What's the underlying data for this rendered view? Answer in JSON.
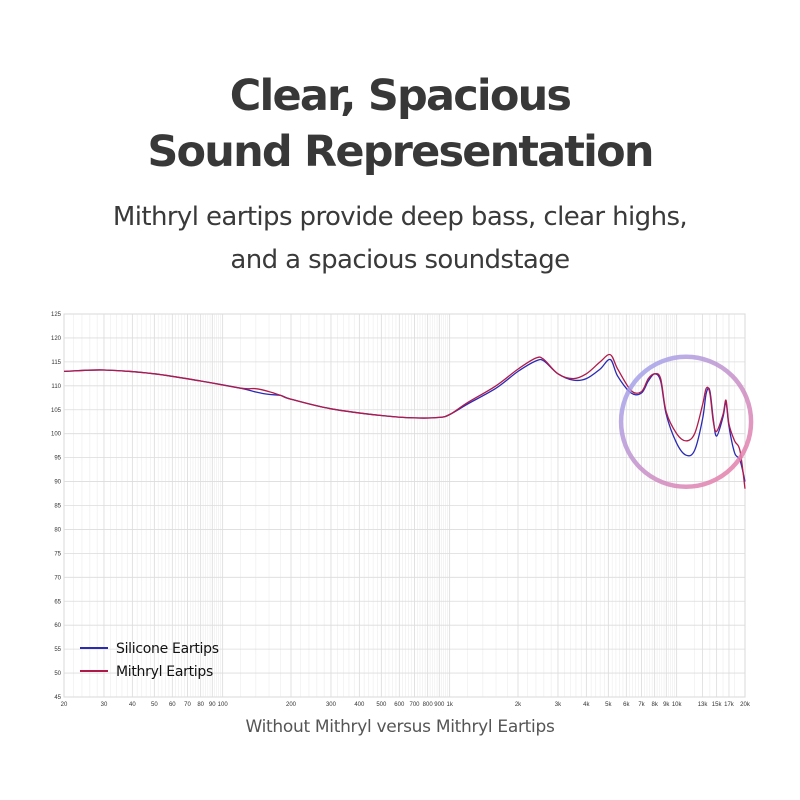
{
  "header": {
    "title_line1": "Clear, Spacious",
    "title_line2": "Sound Representation",
    "subtitle_line1": "Mithryl eartips provide deep bass, clear highs,",
    "subtitle_line2": "and a spacious soundstage"
  },
  "caption": "Without Mithryl versus Mithryl Eartips",
  "colors": {
    "silicone": "#2a2ab5",
    "mithryl": "#b01a4a",
    "grid": "#dcdcdc",
    "highlight_start": "#9aa8f5",
    "highlight_end": "#f07aa0"
  },
  "chart_data": {
    "type": "line",
    "x_scale": "log",
    "xlim": [
      20,
      20000
    ],
    "ylim": [
      45,
      125
    ],
    "y_ticks": [
      45,
      50,
      55,
      60,
      65,
      70,
      75,
      80,
      85,
      90,
      95,
      100,
      105,
      110,
      115,
      120,
      125
    ],
    "x_ticks": [
      {
        "v": 20,
        "label": "20"
      },
      {
        "v": 30,
        "label": "30"
      },
      {
        "v": 40,
        "label": "40"
      },
      {
        "v": 50,
        "label": "50"
      },
      {
        "v": 60,
        "label": "60"
      },
      {
        "v": 70,
        "label": "70"
      },
      {
        "v": 80,
        "label": "80"
      },
      {
        "v": 90,
        "label": "90"
      },
      {
        "v": 100,
        "label": "100"
      },
      {
        "v": 200,
        "label": "200"
      },
      {
        "v": 300,
        "label": "300"
      },
      {
        "v": 400,
        "label": "400"
      },
      {
        "v": 500,
        "label": "500"
      },
      {
        "v": 600,
        "label": "600"
      },
      {
        "v": 700,
        "label": "700"
      },
      {
        "v": 800,
        "label": "800"
      },
      {
        "v": 900,
        "label": "900"
      },
      {
        "v": 1000,
        "label": "1k"
      },
      {
        "v": 2000,
        "label": "2k"
      },
      {
        "v": 3000,
        "label": "3k"
      },
      {
        "v": 4000,
        "label": "4k"
      },
      {
        "v": 5000,
        "label": "5k"
      },
      {
        "v": 6000,
        "label": "6k"
      },
      {
        "v": 7000,
        "label": "7k"
      },
      {
        "v": 8000,
        "label": "8k"
      },
      {
        "v": 9000,
        "label": "9k"
      },
      {
        "v": 10000,
        "label": "10k"
      },
      {
        "v": 13000,
        "label": "13k"
      },
      {
        "v": 15000,
        "label": "15k"
      },
      {
        "v": 17000,
        "label": "17k"
      },
      {
        "v": 20000,
        "label": "20k"
      }
    ],
    "legend": [
      "Silicone Eartips",
      "Mithryl Eartips"
    ],
    "legend_position": "bottom-left",
    "highlight": {
      "center_hz": 11000,
      "center_db": 102.5,
      "note": "gradient circle around treble region"
    },
    "series": [
      {
        "name": "Silicone Eartips",
        "points": [
          [
            20,
            113
          ],
          [
            30,
            113.3
          ],
          [
            50,
            112.5
          ],
          [
            80,
            111
          ],
          [
            120,
            109.5
          ],
          [
            140,
            108.7
          ],
          [
            160,
            108.2
          ],
          [
            180,
            108
          ],
          [
            200,
            107.2
          ],
          [
            300,
            105.2
          ],
          [
            500,
            103.8
          ],
          [
            700,
            103.3
          ],
          [
            900,
            103.4
          ],
          [
            1000,
            104
          ],
          [
            1200,
            106.2
          ],
          [
            1600,
            109.5
          ],
          [
            2000,
            113
          ],
          [
            2400,
            115.2
          ],
          [
            2600,
            115.2
          ],
          [
            3000,
            112.5
          ],
          [
            3500,
            111.2
          ],
          [
            4000,
            111.5
          ],
          [
            4600,
            113.5
          ],
          [
            5100,
            115.5
          ],
          [
            5500,
            112
          ],
          [
            6300,
            108.5
          ],
          [
            7000,
            108.5
          ],
          [
            7500,
            111
          ],
          [
            8000,
            112.5
          ],
          [
            8500,
            111
          ],
          [
            9000,
            104
          ],
          [
            10000,
            98
          ],
          [
            11000,
            95.5
          ],
          [
            12000,
            96.5
          ],
          [
            13000,
            103
          ],
          [
            13500,
            108.5
          ],
          [
            14000,
            109
          ],
          [
            14500,
            103
          ],
          [
            15000,
            99.5
          ],
          [
            16000,
            103.5
          ],
          [
            16500,
            106.5
          ],
          [
            17000,
            101.5
          ],
          [
            18000,
            96
          ],
          [
            19000,
            94.5
          ],
          [
            20000,
            90
          ]
        ]
      },
      {
        "name": "Mithryl Eartips",
        "points": [
          [
            20,
            113
          ],
          [
            30,
            113.3
          ],
          [
            50,
            112.5
          ],
          [
            80,
            111
          ],
          [
            120,
            109.5
          ],
          [
            140,
            109.4
          ],
          [
            160,
            108.8
          ],
          [
            180,
            108
          ],
          [
            200,
            107.2
          ],
          [
            300,
            105.2
          ],
          [
            500,
            103.8
          ],
          [
            700,
            103.3
          ],
          [
            900,
            103.4
          ],
          [
            1000,
            104
          ],
          [
            1200,
            106.5
          ],
          [
            1600,
            110
          ],
          [
            2000,
            113.5
          ],
          [
            2400,
            115.8
          ],
          [
            2600,
            115.5
          ],
          [
            3000,
            112.5
          ],
          [
            3500,
            111.5
          ],
          [
            4000,
            112.5
          ],
          [
            4600,
            115
          ],
          [
            5100,
            116.5
          ],
          [
            5500,
            113.5
          ],
          [
            6300,
            109
          ],
          [
            7000,
            108.8
          ],
          [
            7500,
            111.5
          ],
          [
            8000,
            112.5
          ],
          [
            8500,
            111.5
          ],
          [
            9000,
            104.5
          ],
          [
            10000,
            100
          ],
          [
            11000,
            98.5
          ],
          [
            12000,
            100
          ],
          [
            13000,
            106
          ],
          [
            13500,
            109.5
          ],
          [
            14000,
            108.5
          ],
          [
            14500,
            102.5
          ],
          [
            15000,
            100.5
          ],
          [
            16000,
            104
          ],
          [
            16500,
            107
          ],
          [
            17000,
            102
          ],
          [
            18000,
            98.5
          ],
          [
            19000,
            96.5
          ],
          [
            20000,
            88.5
          ]
        ]
      }
    ]
  }
}
